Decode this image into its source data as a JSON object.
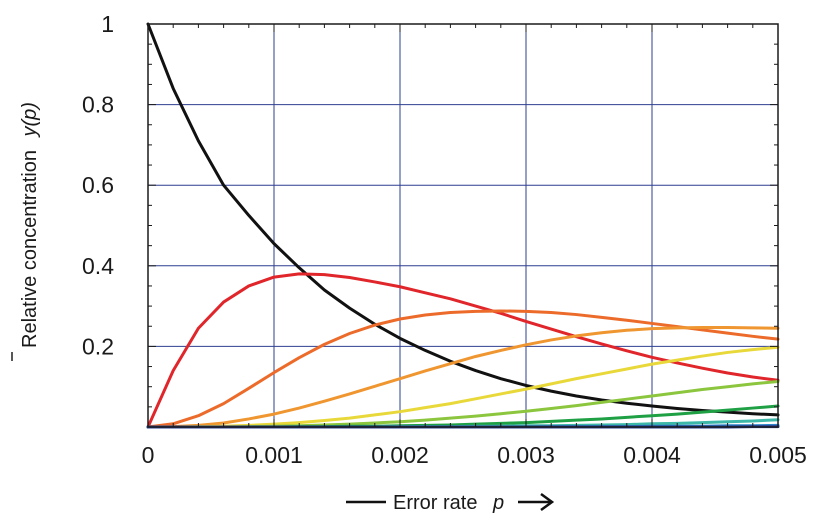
{
  "chart_data": {
    "type": "line",
    "xlabel_text": "Error rate",
    "xlabel_var": "p",
    "ylabel_text": "Relative concentration",
    "ylabel_var": "y(p)",
    "xlim": [
      0,
      0.005
    ],
    "ylim": [
      0,
      1
    ],
    "xticks": [
      0,
      0.001,
      0.002,
      0.003,
      0.004,
      0.005
    ],
    "xtick_labels": [
      "0",
      "0.001",
      "0.002",
      "0.003",
      "0.004",
      "0.005"
    ],
    "yticks": [
      0.2,
      0.4,
      0.6,
      0.8,
      1
    ],
    "ytick_labels": [
      "0.2",
      "0.4",
      "0.6",
      "0.8",
      "1"
    ],
    "grid": true,
    "grid_color": "#2e3f91",
    "x": [
      0,
      0.0002,
      0.0004,
      0.0006,
      0.0008,
      0.001,
      0.0012,
      0.0014,
      0.0016,
      0.0018,
      0.002,
      0.0022,
      0.0024,
      0.0026,
      0.0028,
      0.003,
      0.0032,
      0.0034,
      0.0036,
      0.0038,
      0.004,
      0.0042,
      0.0044,
      0.0046,
      0.0048,
      0.005
    ],
    "series": [
      {
        "color": "#111111",
        "values": [
          1.0,
          0.84,
          0.71,
          0.6,
          0.525,
          0.455,
          0.395,
          0.34,
          0.295,
          0.255,
          0.22,
          0.19,
          0.163,
          0.14,
          0.12,
          0.103,
          0.089,
          0.077,
          0.067,
          0.059,
          0.052,
          0.046,
          0.041,
          0.037,
          0.033,
          0.03
        ]
      },
      {
        "color": "#e0262b",
        "values": [
          0,
          0.14,
          0.245,
          0.31,
          0.35,
          0.372,
          0.38,
          0.378,
          0.371,
          0.36,
          0.348,
          0.333,
          0.318,
          0.3,
          0.282,
          0.262,
          0.243,
          0.224,
          0.206,
          0.189,
          0.173,
          0.159,
          0.146,
          0.134,
          0.124,
          0.116
        ]
      },
      {
        "color": "#ec6b2a",
        "values": [
          0,
          0.008,
          0.028,
          0.058,
          0.096,
          0.135,
          0.172,
          0.205,
          0.232,
          0.253,
          0.268,
          0.278,
          0.284,
          0.287,
          0.288,
          0.287,
          0.284,
          0.279,
          0.272,
          0.265,
          0.257,
          0.249,
          0.241,
          0.233,
          0.225,
          0.218
        ]
      },
      {
        "color": "#ef9630",
        "values": [
          0,
          0.001,
          0.004,
          0.01,
          0.02,
          0.032,
          0.047,
          0.064,
          0.082,
          0.101,
          0.12,
          0.139,
          0.157,
          0.175,
          0.19,
          0.204,
          0.216,
          0.226,
          0.234,
          0.24,
          0.244,
          0.246,
          0.247,
          0.247,
          0.246,
          0.245
        ]
      },
      {
        "color": "#e8d83a",
        "values": [
          0,
          0,
          0.001,
          0.002,
          0.004,
          0.007,
          0.011,
          0.016,
          0.022,
          0.03,
          0.038,
          0.048,
          0.058,
          0.07,
          0.082,
          0.094,
          0.107,
          0.12,
          0.132,
          0.144,
          0.156,
          0.166,
          0.176,
          0.185,
          0.192,
          0.198
        ]
      },
      {
        "color": "#8cc63e",
        "values": [
          0,
          0,
          0,
          0,
          0.001,
          0.002,
          0.003,
          0.005,
          0.007,
          0.01,
          0.013,
          0.017,
          0.022,
          0.027,
          0.033,
          0.039,
          0.046,
          0.053,
          0.061,
          0.069,
          0.077,
          0.085,
          0.093,
          0.1,
          0.107,
          0.113
        ]
      },
      {
        "color": "#1fa045",
        "values": [
          0,
          0,
          0,
          0,
          0,
          0,
          0.001,
          0.001,
          0.002,
          0.002,
          0.003,
          0.004,
          0.005,
          0.007,
          0.009,
          0.011,
          0.014,
          0.017,
          0.02,
          0.024,
          0.028,
          0.032,
          0.037,
          0.042,
          0.047,
          0.052
        ]
      },
      {
        "color": "#3db7a8",
        "values": [
          0,
          0,
          0,
          0,
          0,
          0,
          0,
          0,
          0,
          0,
          0.001,
          0.001,
          0.001,
          0.002,
          0.002,
          0.003,
          0.003,
          0.004,
          0.005,
          0.006,
          0.008,
          0.009,
          0.011,
          0.013,
          0.015,
          0.018
        ]
      },
      {
        "color": "#2c86c9",
        "values": [
          0,
          0,
          0,
          0,
          0,
          0,
          0,
          0,
          0,
          0,
          0,
          0,
          0,
          0,
          0,
          0,
          0.001,
          0.001,
          0.001,
          0.001,
          0.002,
          0.002,
          0.002,
          0.003,
          0.003,
          0.004
        ]
      },
      {
        "color": "#2a3f8f",
        "values": [
          0,
          0,
          0,
          0,
          0,
          0,
          0,
          0,
          0,
          0,
          0,
          0,
          0,
          0,
          0,
          0,
          0,
          0,
          0,
          0,
          0,
          0,
          0,
          0,
          0.001,
          0.001
        ]
      }
    ]
  }
}
